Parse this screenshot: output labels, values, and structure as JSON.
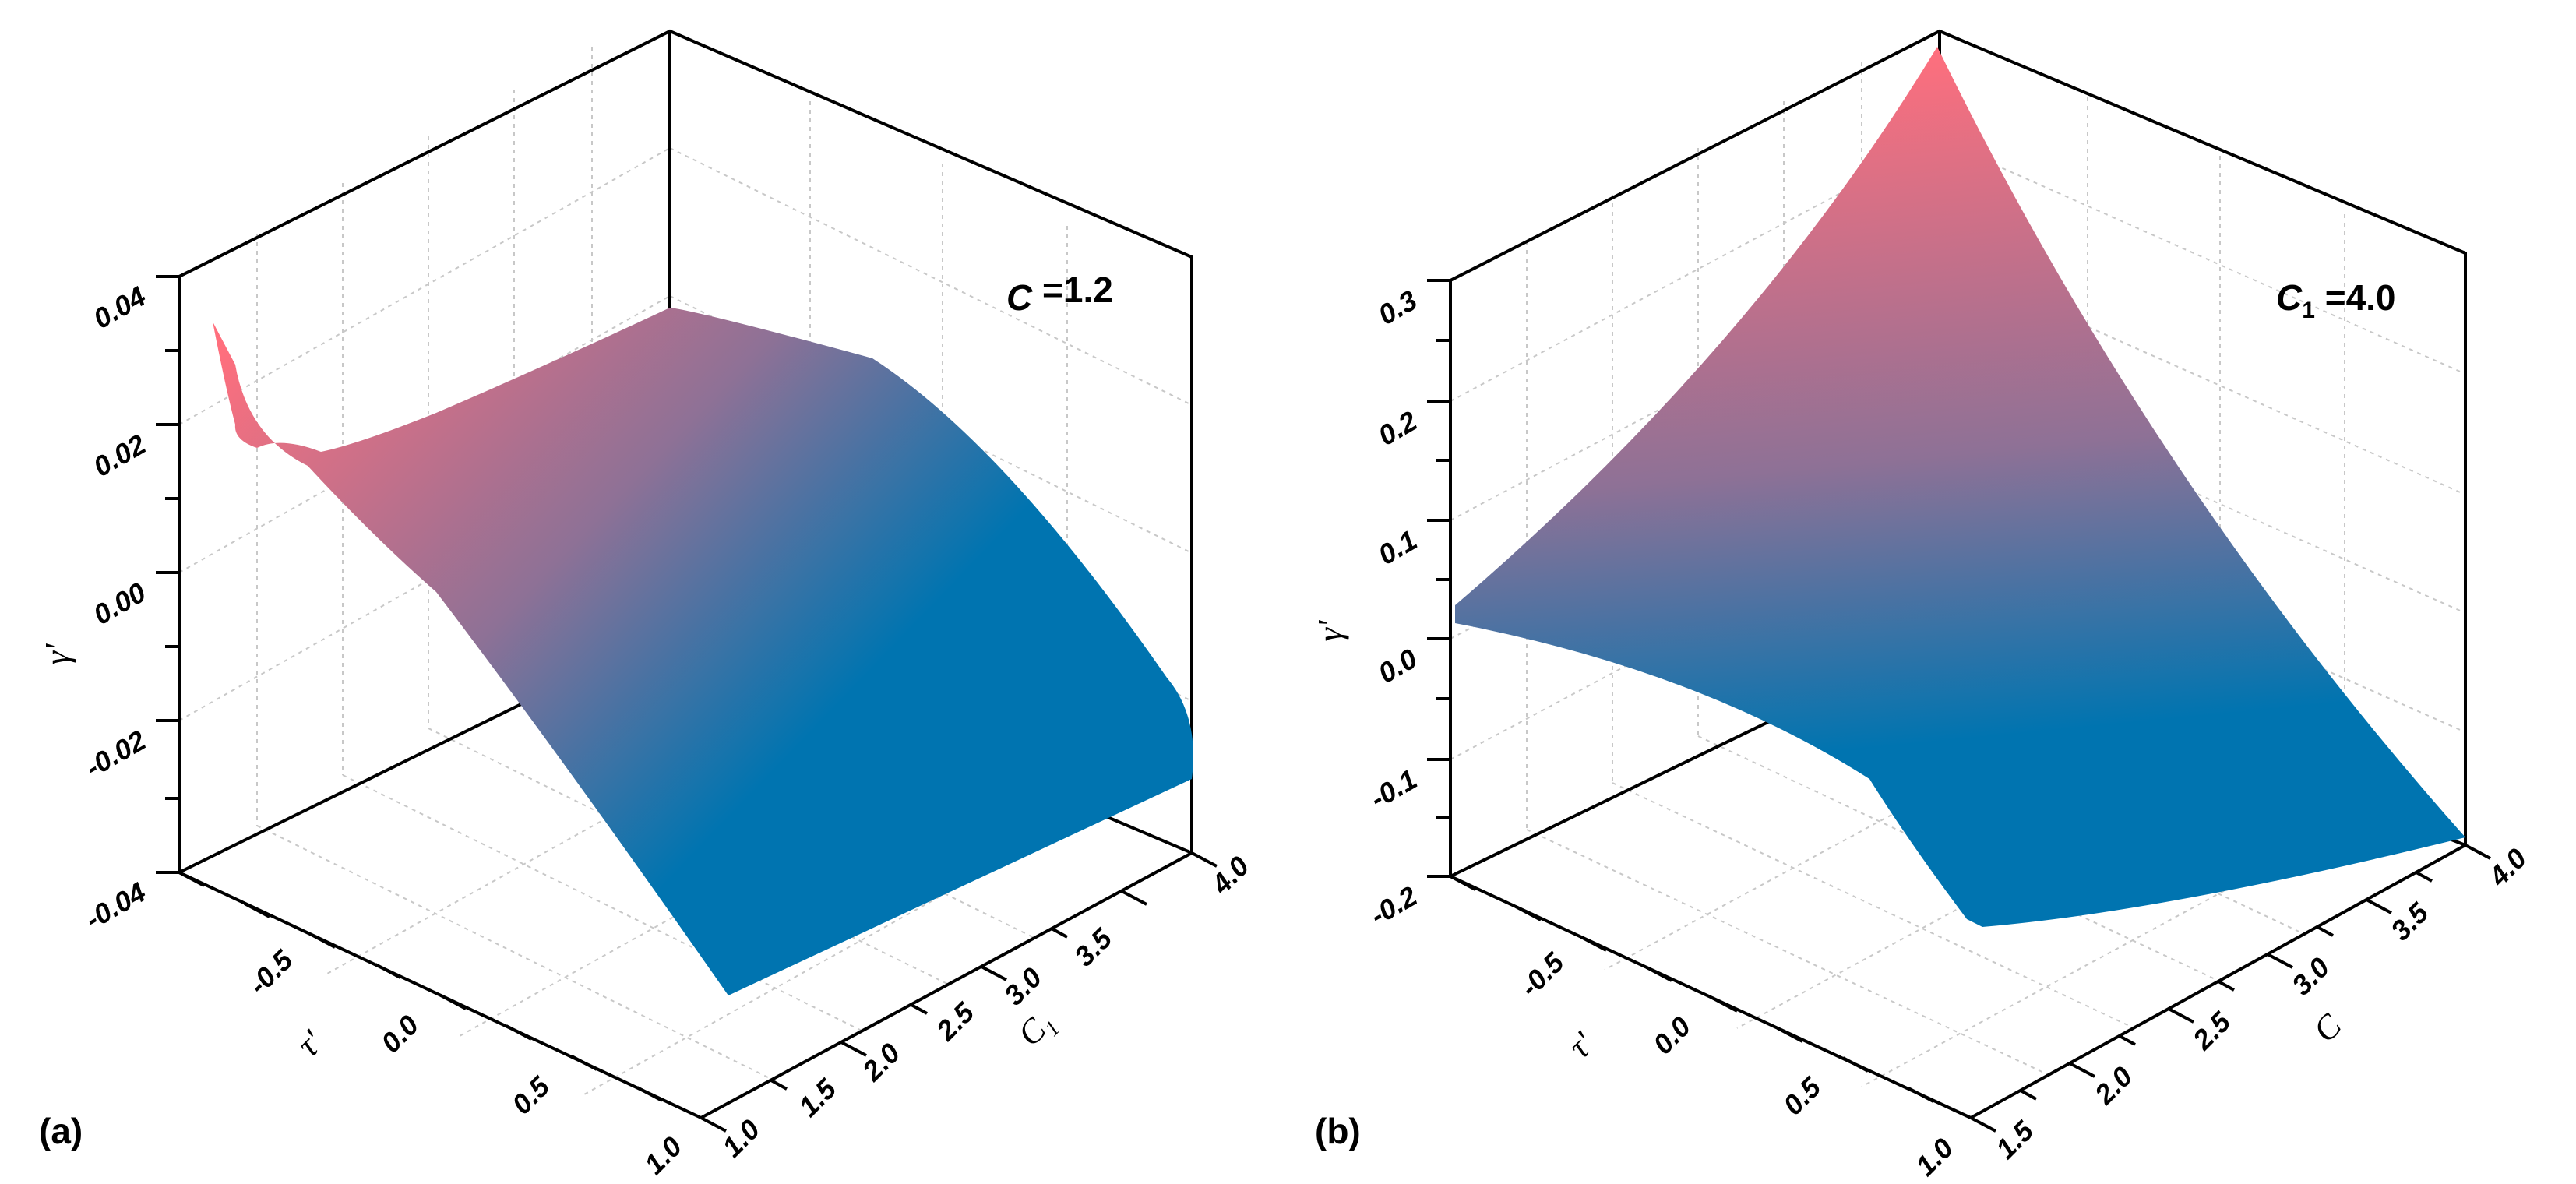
{
  "colors": {
    "high": "#ff6f7d",
    "mid": "#8e7196",
    "low": "#0074b0"
  },
  "chart_data": [
    {
      "type": "surface",
      "panel_label": "(a)",
      "parameter": {
        "symbol": "C",
        "subscript": "",
        "text": " =1.2"
      },
      "zlabel": "γ'",
      "xlabel": "τ'",
      "ylabel": {
        "symbol": "C",
        "subscript": "1"
      },
      "xlim": [
        -1.0,
        1.0
      ],
      "ylim": [
        1.0,
        4.0
      ],
      "zlim": [
        -0.04,
        0.04
      ],
      "z_ticks": [
        "0.04",
        "0.02",
        "0.00",
        "-0.02",
        "-0.04"
      ],
      "x_ticks": [
        "-0.5",
        "0.0",
        "0.5",
        "1.0"
      ],
      "y_ticks": [
        "1.0",
        "1.5",
        "2.0",
        "2.5",
        "3.0",
        "3.5",
        "4.0"
      ],
      "corner_values": {
        "tau_-1_C1_1.0": 0.034,
        "tau_-1_C1_4.0": 0.036,
        "tau_1_C1_1.0": -0.052,
        "tau_1_C1_4.0": -0.015
      }
    },
    {
      "type": "surface",
      "panel_label": "(b)",
      "parameter": {
        "symbol": "C",
        "subscript": "1",
        "text": " =4.0"
      },
      "zlabel": "γ'",
      "xlabel": "τ'",
      "ylabel": {
        "symbol": "C",
        "subscript": ""
      },
      "xlim": [
        -1.0,
        1.0
      ],
      "ylim": [
        1.5,
        4.0
      ],
      "zlim": [
        -0.2,
        0.3
      ],
      "z_ticks": [
        "0.3",
        "0.2",
        "0.1",
        "0.0",
        "-0.1",
        "-0.2"
      ],
      "x_ticks": [
        "-0.5",
        "0.0",
        "0.5",
        "1.0"
      ],
      "y_ticks": [
        "1.5",
        "2.0",
        "2.5",
        "3.0",
        "3.5",
        "4.0"
      ],
      "corner_values": {
        "tau_-1_C_1.5": 0.02,
        "tau_-1_C_4.0": 0.31,
        "tau_1_C_1.5": -0.25,
        "tau_1_C_4.0": -0.16
      }
    }
  ]
}
